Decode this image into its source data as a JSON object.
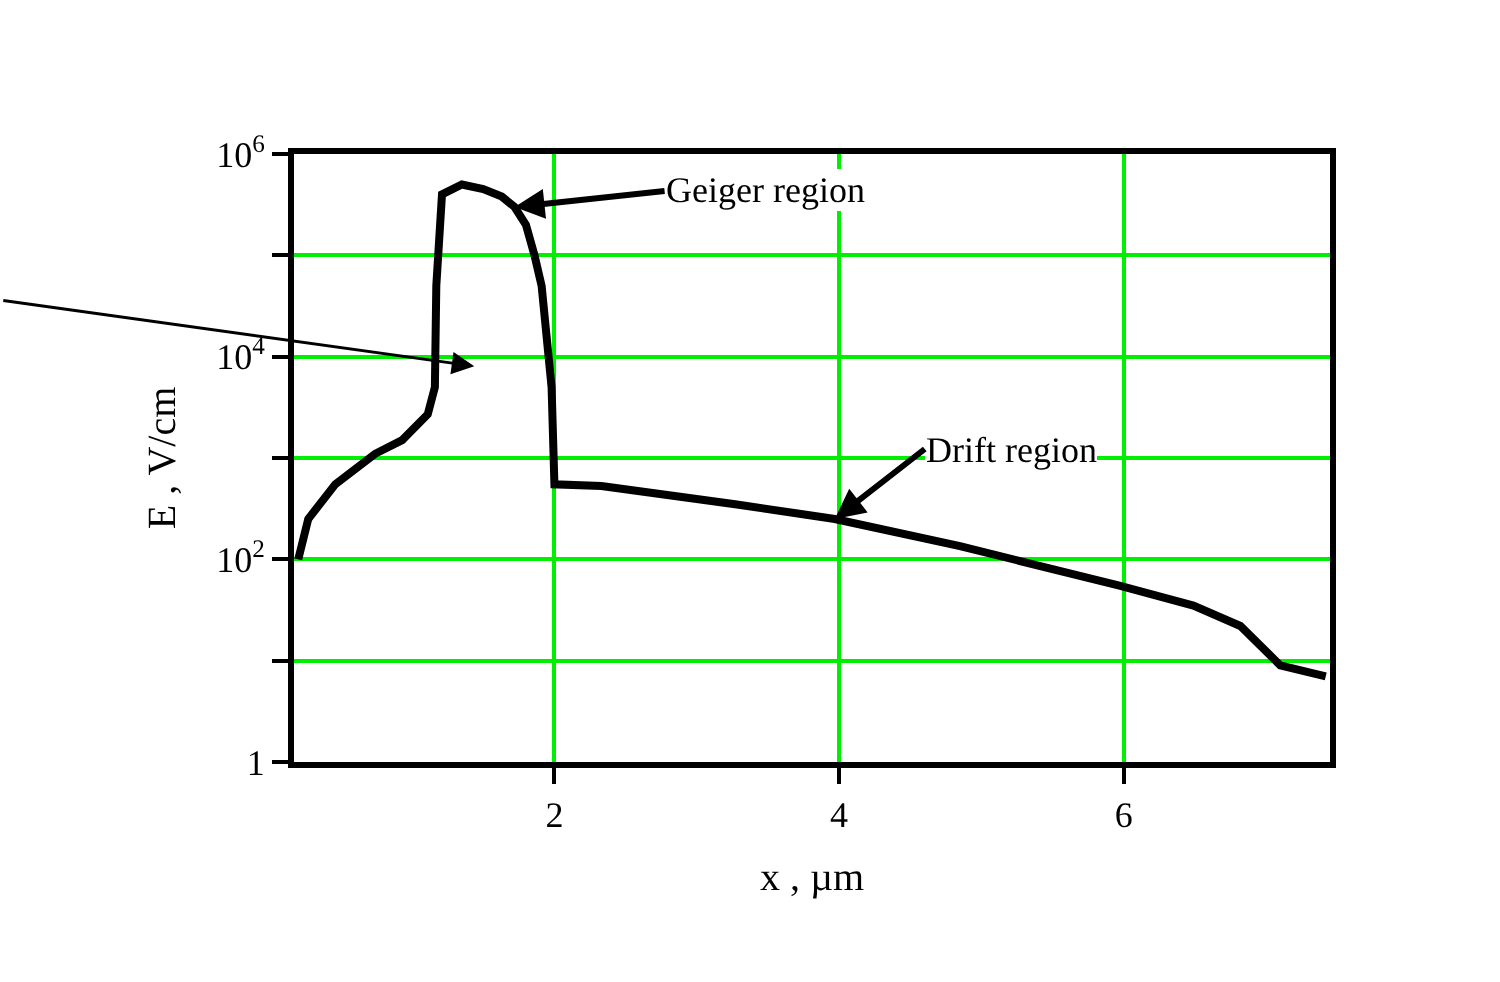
{
  "chart_data": {
    "type": "line",
    "xlabel": "x , µm",
    "ylabel": "E , V/cm",
    "x": [
      0.2,
      0.27,
      0.46,
      0.74,
      0.93,
      1.11,
      1.16,
      1.17,
      1.21,
      1.35,
      1.5,
      1.63,
      1.72,
      1.8,
      1.86,
      1.91,
      1.98,
      2.0,
      2.33,
      3.27,
      3.97,
      4.85,
      5.97,
      6.49,
      6.82,
      7.1,
      7.42
    ],
    "series": [
      {
        "color": "#000000",
        "values": [
          100,
          250,
          550,
          1100,
          1500,
          2700,
          5000,
          50000,
          400000,
          500000,
          450000,
          380000,
          300000,
          200000,
          100000,
          50000,
          5000,
          550,
          530,
          350,
          250,
          135,
          55,
          35,
          22,
          9,
          7
        ]
      }
    ],
    "xlim": [
      0.17,
      7.45
    ],
    "xticks": [
      2,
      4,
      6
    ],
    "ylim": [
      1,
      1000000
    ],
    "log": "y",
    "yticks": [
      1,
      {
        "value": 10,
        "label": null
      },
      {
        "value": 100,
        "label": "10$^{2}$"
      },
      {
        "value": 1000,
        "label": null
      },
      {
        "value": 10000,
        "label": "10$^{4}$"
      },
      {
        "value": 100000,
        "label": null
      },
      {
        "value": 1000000,
        "label": "10$^{6}$"
      }
    ],
    "grid": true,
    "marker": "none",
    "line_style": "solid",
    "annotations": [
      {
        "text": "Geiger region",
        "x": 1.72,
        "y": 300000
      },
      {
        "text": "Drift region",
        "x": 3.97,
        "y": 250
      }
    ]
  }
}
